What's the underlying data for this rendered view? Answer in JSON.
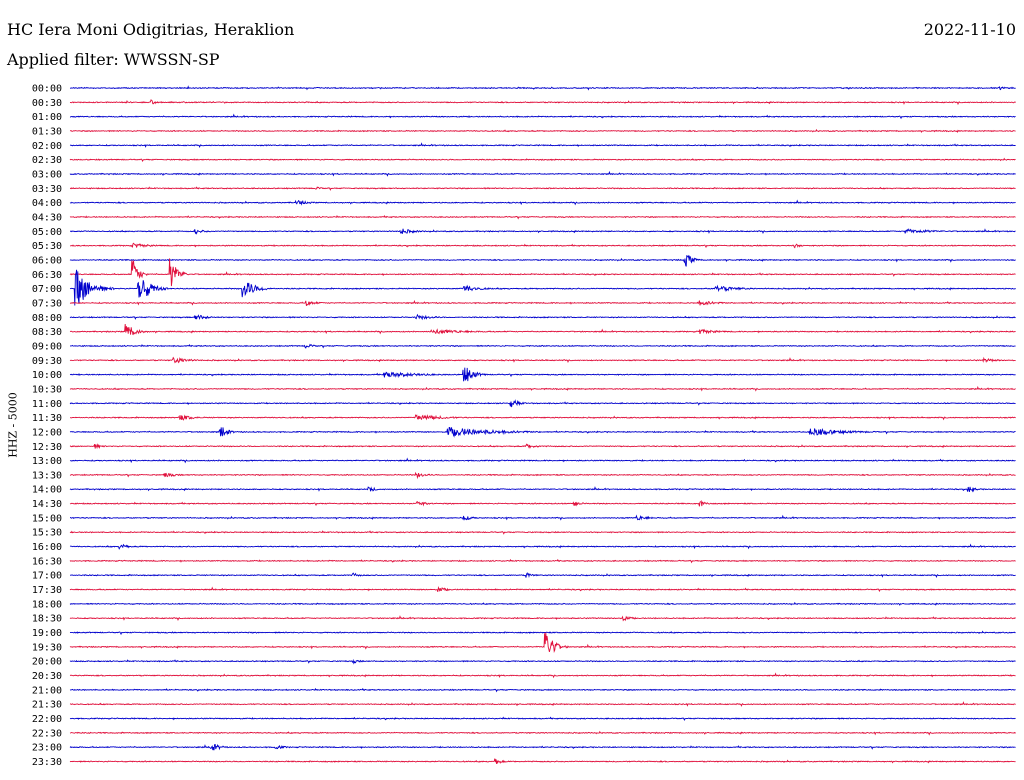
{
  "header": {
    "station": "HC Iera Moni Odigitrias, Heraklion",
    "filter": "Applied filter: WWSSN-SP",
    "date": "2022-11-10",
    "channel": "HHZ - 5000"
  },
  "colors": {
    "blue": "#0000cc",
    "red": "#e0103c",
    "text": "#000000"
  },
  "chart_data": {
    "type": "line",
    "title": "HC Iera Moni Odigitrias, Heraklion",
    "subtitle": "Applied filter: WWSSN-SP",
    "ylabel": "HHZ - 5000",
    "trace_colors": [
      "#0000cc",
      "#e0103c"
    ],
    "row_labels": [
      "00:00",
      "00:30",
      "01:00",
      "01:30",
      "02:00",
      "02:30",
      "03:00",
      "03:30",
      "04:00",
      "04:30",
      "05:00",
      "05:30",
      "06:00",
      "06:30",
      "07:00",
      "07:30",
      "08:00",
      "08:30",
      "09:00",
      "09:30",
      "10:00",
      "10:30",
      "11:00",
      "11:30",
      "12:00",
      "12:30",
      "13:00",
      "13:30",
      "14:00",
      "14:30",
      "15:00",
      "15:30",
      "16:00",
      "16:30",
      "17:00",
      "17:30",
      "18:00",
      "18:30",
      "19:00",
      "19:30",
      "20:00",
      "20:30",
      "21:00",
      "21:30",
      "22:00",
      "22:30",
      "23:00",
      "23:30"
    ],
    "x_unit": "minutes into row (0-30)",
    "events": [
      {
        "row": "00:00",
        "t": 29.5,
        "amp": 2,
        "dur": 0.4
      },
      {
        "row": "00:30",
        "t": 2.6,
        "amp": 2.5,
        "dur": 0.4
      },
      {
        "row": "03:30",
        "t": 7.8,
        "amp": 1.5,
        "dur": 0.6
      },
      {
        "row": "04:00",
        "t": 7.2,
        "amp": 2.5,
        "dur": 1.0
      },
      {
        "row": "05:00",
        "t": 4.0,
        "amp": 2.5,
        "dur": 0.8
      },
      {
        "row": "05:00",
        "t": 10.5,
        "amp": 3,
        "dur": 1.2
      },
      {
        "row": "05:00",
        "t": 26.5,
        "amp": 2.5,
        "dur": 2.5
      },
      {
        "row": "05:30",
        "t": 2.0,
        "amp": 2.5,
        "dur": 1.5
      },
      {
        "row": "05:30",
        "t": 23.0,
        "amp": 2,
        "dur": 0.6
      },
      {
        "row": "06:00",
        "t": 19.5,
        "amp": 8,
        "dur": 0.6
      },
      {
        "row": "06:30",
        "t": 2.0,
        "amp": 15,
        "dur": 0.5
      },
      {
        "row": "06:30",
        "t": 3.2,
        "amp": 16,
        "dur": 0.6
      },
      {
        "row": "07:00",
        "t": 0.2,
        "amp": 20,
        "dur": 1.2
      },
      {
        "row": "07:00",
        "t": 2.2,
        "amp": 17,
        "dur": 0.9
      },
      {
        "row": "07:00",
        "t": 5.5,
        "amp": 10,
        "dur": 1.0
      },
      {
        "row": "07:00",
        "t": 12.5,
        "amp": 4,
        "dur": 1.2
      },
      {
        "row": "07:00",
        "t": 20.5,
        "amp": 3,
        "dur": 2.0
      },
      {
        "row": "07:30",
        "t": 7.5,
        "amp": 3,
        "dur": 0.8
      },
      {
        "row": "07:30",
        "t": 20.0,
        "amp": 2.5,
        "dur": 1.5
      },
      {
        "row": "08:00",
        "t": 4.0,
        "amp": 3,
        "dur": 1.0
      },
      {
        "row": "08:00",
        "t": 11.0,
        "amp": 2.5,
        "dur": 1.5
      },
      {
        "row": "08:30",
        "t": 1.8,
        "amp": 8,
        "dur": 0.8
      },
      {
        "row": "08:30",
        "t": 11.5,
        "amp": 2.5,
        "dur": 3.0
      },
      {
        "row": "08:30",
        "t": 20.0,
        "amp": 2.5,
        "dur": 1.5
      },
      {
        "row": "09:00",
        "t": 7.5,
        "amp": 2.5,
        "dur": 0.6
      },
      {
        "row": "09:30",
        "t": 3.3,
        "amp": 3,
        "dur": 1.5
      },
      {
        "row": "09:30",
        "t": 29.0,
        "amp": 2,
        "dur": 1.2
      },
      {
        "row": "10:00",
        "t": 12.5,
        "amp": 10,
        "dur": 0.8
      },
      {
        "row": "10:00",
        "t": 10.0,
        "amp": 3,
        "dur": 3.0
      },
      {
        "row": "11:00",
        "t": 14.0,
        "amp": 5,
        "dur": 0.6
      },
      {
        "row": "11:30",
        "t": 3.5,
        "amp": 3,
        "dur": 1.2
      },
      {
        "row": "11:30",
        "t": 11.0,
        "amp": 3,
        "dur": 2.5
      },
      {
        "row": "12:00",
        "t": 4.8,
        "amp": 6,
        "dur": 0.6
      },
      {
        "row": "12:00",
        "t": 12.0,
        "amp": 5,
        "dur": 4.0
      },
      {
        "row": "12:00",
        "t": 23.5,
        "amp": 4,
        "dur": 3.0
      },
      {
        "row": "12:30",
        "t": 0.8,
        "amp": 2.5,
        "dur": 0.6
      },
      {
        "row": "12:30",
        "t": 14.5,
        "amp": 2.5,
        "dur": 0.8
      },
      {
        "row": "13:30",
        "t": 11.0,
        "amp": 3,
        "dur": 0.8
      },
      {
        "row": "13:30",
        "t": 3.0,
        "amp": 2.5,
        "dur": 1.0
      },
      {
        "row": "14:00",
        "t": 9.5,
        "amp": 2.5,
        "dur": 0.6
      },
      {
        "row": "14:00",
        "t": 28.5,
        "amp": 4,
        "dur": 0.5
      },
      {
        "row": "14:30",
        "t": 11.0,
        "amp": 3,
        "dur": 0.8
      },
      {
        "row": "14:30",
        "t": 16.0,
        "amp": 3,
        "dur": 0.6
      },
      {
        "row": "14:30",
        "t": 20.0,
        "amp": 3,
        "dur": 0.6
      },
      {
        "row": "15:00",
        "t": 12.5,
        "amp": 2.5,
        "dur": 0.8
      },
      {
        "row": "15:00",
        "t": 18.0,
        "amp": 2.5,
        "dur": 1.0
      },
      {
        "row": "16:00",
        "t": 1.6,
        "amp": 3,
        "dur": 0.6
      },
      {
        "row": "17:00",
        "t": 9.0,
        "amp": 2.5,
        "dur": 0.6
      },
      {
        "row": "17:00",
        "t": 14.5,
        "amp": 2.5,
        "dur": 0.6
      },
      {
        "row": "17:30",
        "t": 11.7,
        "amp": 2.5,
        "dur": 0.8
      },
      {
        "row": "18:30",
        "t": 17.5,
        "amp": 3,
        "dur": 0.8
      },
      {
        "row": "19:30",
        "t": 15.1,
        "amp": 16,
        "dur": 0.7
      },
      {
        "row": "20:00",
        "t": 9.0,
        "amp": 2,
        "dur": 0.6
      },
      {
        "row": "23:00",
        "t": 4.5,
        "amp": 4,
        "dur": 0.8
      },
      {
        "row": "23:00",
        "t": 6.5,
        "amp": 2,
        "dur": 1.0
      },
      {
        "row": "23:30",
        "t": 13.5,
        "amp": 3,
        "dur": 0.6
      }
    ]
  }
}
